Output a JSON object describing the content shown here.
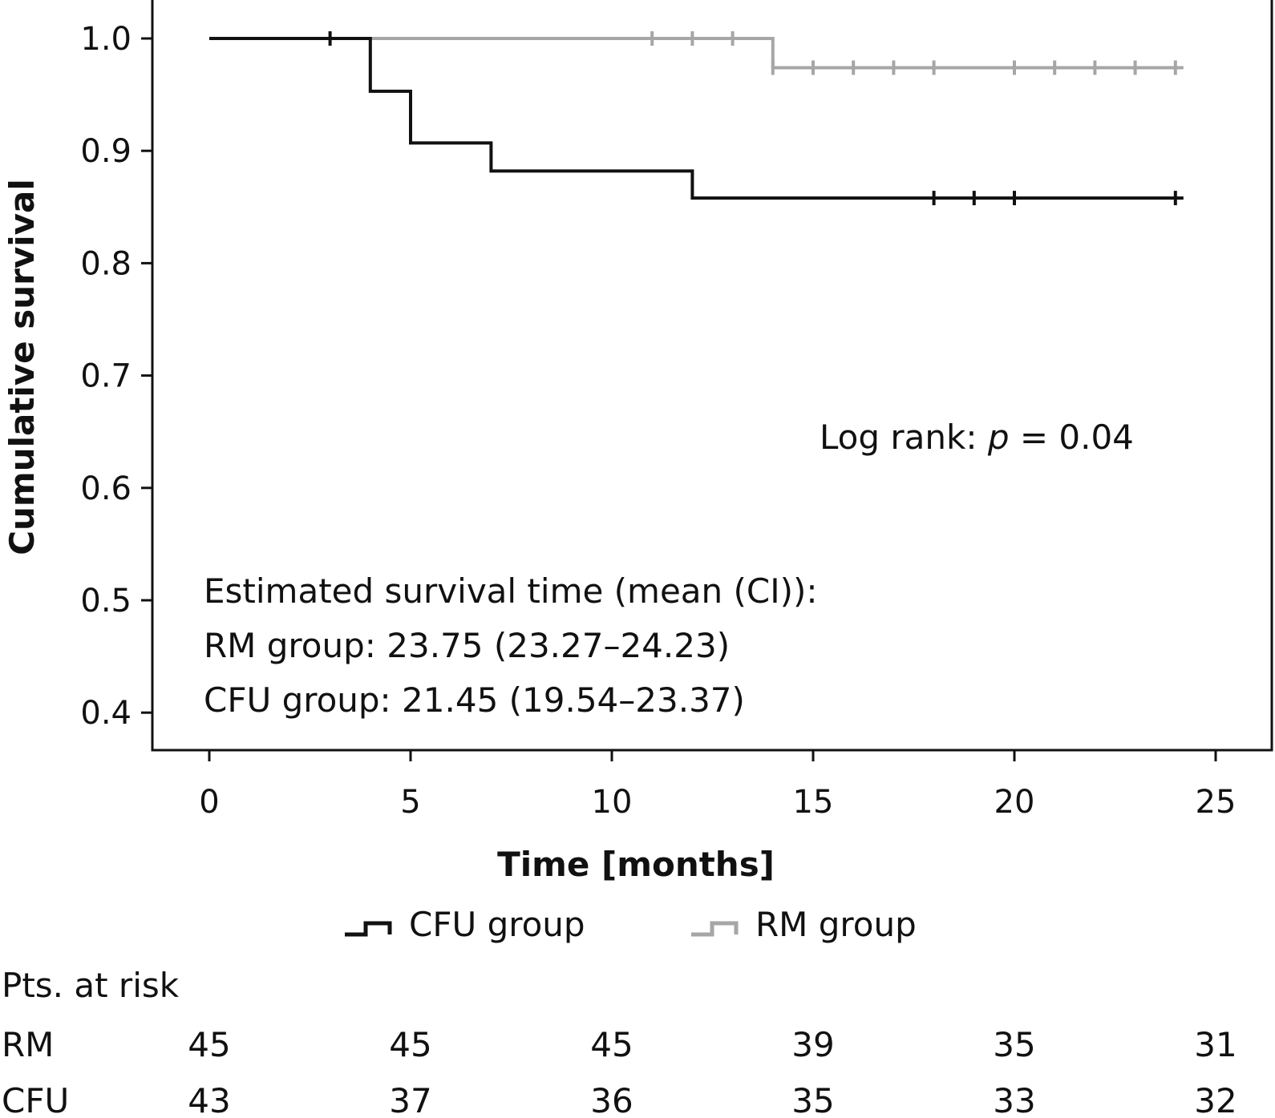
{
  "chart_data": {
    "type": "line",
    "subtype": "kaplan-meier",
    "xlabel": "Time [months]",
    "ylabel": "Cumulative survival",
    "xlim": [
      0,
      25
    ],
    "ylim": [
      0.4,
      1.0
    ],
    "x_ticks": [
      "0",
      "5",
      "10",
      "15",
      "20",
      "25"
    ],
    "y_ticks": [
      "0.4",
      "0.5",
      "0.6",
      "0.7",
      "0.8",
      "0.9",
      "1.0"
    ],
    "x_tick_values": [
      0,
      5,
      10,
      15,
      20,
      25
    ],
    "y_tick_values": [
      0.4,
      0.5,
      0.6,
      0.7,
      0.8,
      0.9,
      1.0
    ],
    "grid": false,
    "legend_position": "bottom-center",
    "series": [
      {
        "name": "CFU group",
        "color": "#111111",
        "steps": [
          [
            0,
            1.0
          ],
          [
            4,
            0.953
          ],
          [
            5,
            0.907
          ],
          [
            7,
            0.882
          ],
          [
            12,
            0.858
          ],
          [
            24.2,
            0.858
          ]
        ],
        "censored": [
          [
            3,
            1.0
          ],
          [
            18,
            0.858
          ],
          [
            19,
            0.858
          ],
          [
            20,
            0.858
          ],
          [
            24,
            0.858
          ]
        ]
      },
      {
        "name": "RM group",
        "color": "#a6a6a6",
        "steps": [
          [
            0,
            1.0
          ],
          [
            14,
            0.974
          ],
          [
            24.2,
            0.974
          ]
        ],
        "censored": [
          [
            11,
            1.0
          ],
          [
            12,
            1.0
          ],
          [
            13,
            1.0
          ],
          [
            14,
            0.974
          ],
          [
            15,
            0.974
          ],
          [
            16,
            0.974
          ],
          [
            17,
            0.974
          ],
          [
            18,
            0.974
          ],
          [
            20,
            0.974
          ],
          [
            21,
            0.974
          ],
          [
            22,
            0.974
          ],
          [
            23,
            0.974
          ],
          [
            24,
            0.974
          ]
        ]
      }
    ],
    "annotations": {
      "logrank_prefix": "Log rank: ",
      "logrank_p": "p",
      "logrank_suffix": " = 0.04",
      "estimate_title": "Estimated survival time (mean (CI)):",
      "estimate_rm": "RM group: 23.75 (23.27–24.23)",
      "estimate_cfu": "CFU group: 21.45 (19.54–23.37)"
    },
    "risk_table": {
      "title": "Pts. at risk",
      "times": [
        0,
        5,
        10,
        15,
        20,
        25
      ],
      "rows": [
        {
          "label": "RM",
          "values": [
            "45",
            "45",
            "45",
            "39",
            "35",
            "31"
          ]
        },
        {
          "label": "CFU",
          "values": [
            "43",
            "37",
            "36",
            "35",
            "33",
            "32"
          ]
        }
      ]
    }
  }
}
